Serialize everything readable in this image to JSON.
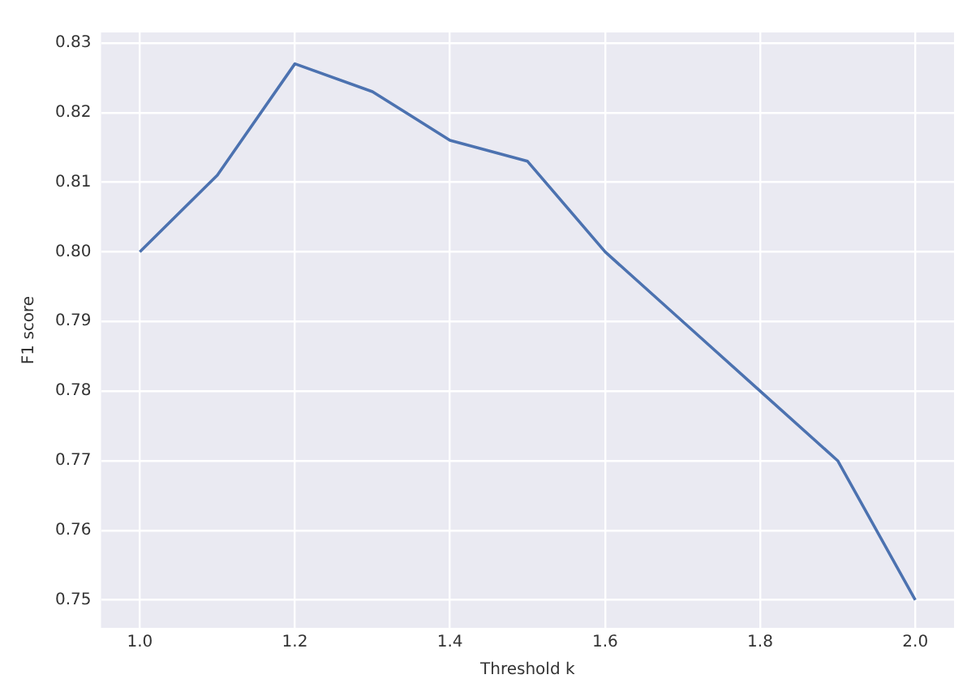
{
  "chart_data": {
    "type": "line",
    "xlabel": "Threshold k",
    "ylabel": "F1 score",
    "x": [
      1.0,
      1.1,
      1.2,
      1.3,
      1.4,
      1.5,
      1.6,
      1.7,
      1.8,
      1.9,
      2.0
    ],
    "series": [
      {
        "color": "#4c72b0",
        "values": [
          0.8,
          0.811,
          0.827,
          0.823,
          0.816,
          0.813,
          0.8,
          0.79,
          0.78,
          0.77,
          0.75
        ]
      }
    ],
    "xlim": [
      0.95,
      2.05
    ],
    "xticks": [
      {
        "value": 1.0,
        "label": "1.0"
      },
      {
        "value": 1.2,
        "label": "1.2"
      },
      {
        "value": 1.4,
        "label": "1.4"
      },
      {
        "value": 1.6,
        "label": "1.6"
      },
      {
        "value": 1.8,
        "label": "1.8"
      },
      {
        "value": 2.0,
        "label": "2.0"
      }
    ],
    "ylim": [
      0.746,
      0.8315
    ],
    "yticks": [
      {
        "value": 0.75,
        "label": "0.75"
      },
      {
        "value": 0.76,
        "label": "0.76"
      },
      {
        "value": 0.77,
        "label": "0.77"
      },
      {
        "value": 0.78,
        "label": "0.78"
      },
      {
        "value": 0.79,
        "label": "0.79"
      },
      {
        "value": 0.8,
        "label": "0.80"
      },
      {
        "value": 0.81,
        "label": "0.81"
      },
      {
        "value": 0.82,
        "label": "0.82"
      },
      {
        "value": 0.83,
        "label": "0.83"
      }
    ],
    "grid": true,
    "marker": "none",
    "line_style": "solid"
  }
}
